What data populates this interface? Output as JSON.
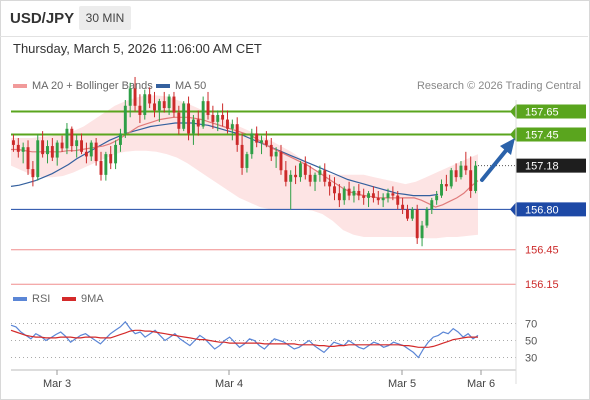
{
  "header": {
    "symbol": "USD/JPY",
    "timeframe": "30 MIN",
    "datetime": "Thursday, March 5, 2026 11:06:00 AM CET"
  },
  "legend": {
    "ma20_label": "MA 20 + Bollinger Bands",
    "ma50_label": "MA 50",
    "research": "Research © 2026 Trading Central",
    "rsi_label": "RSI",
    "rsi_ma_label": "9MA"
  },
  "colors": {
    "up_candle": "#2e9f46",
    "down_candle": "#cc2a2a",
    "ma20": "#e07b7b",
    "bollinger_fill": "#fde4e4",
    "ma50": "#34609e",
    "resistance": "#5aa51e",
    "pivot": "#1d49a6",
    "support": "#f08d8d",
    "current": "#1e1e1e",
    "arrow": "#2b62aa",
    "rsi": "#5b86d6",
    "rsi_ma": "#d42a2a"
  },
  "chart_data": [
    {
      "type": "candlestick",
      "title": "USD/JPY",
      "x_labels": [
        "Mar 3",
        "Mar 4",
        "Mar 5",
        "Mar 6"
      ],
      "ylim": [
        156.1,
        157.75
      ],
      "price_levels": [
        {
          "value": 157.65,
          "label": "157.65",
          "kind": "resistance"
        },
        {
          "value": 157.45,
          "label": "157.45",
          "kind": "resistance"
        },
        {
          "value": 157.18,
          "label": "157.18",
          "kind": "current"
        },
        {
          "value": 156.8,
          "label": "156.80",
          "kind": "pivot"
        },
        {
          "value": 156.45,
          "label": "156.45",
          "kind": "support"
        },
        {
          "value": 156.15,
          "label": "156.15",
          "kind": "support"
        }
      ],
      "candles": [
        [
          157.4,
          157.45,
          157.3,
          157.36
        ],
        [
          157.36,
          157.42,
          157.25,
          157.3
        ],
        [
          157.3,
          157.38,
          157.2,
          157.34
        ],
        [
          157.34,
          157.4,
          157.1,
          157.15
        ],
        [
          157.15,
          157.22,
          157.0,
          157.08
        ],
        [
          157.08,
          157.45,
          157.05,
          157.4
        ],
        [
          157.4,
          157.48,
          157.25,
          157.28
        ],
        [
          157.28,
          157.4,
          157.2,
          157.35
        ],
        [
          157.35,
          157.42,
          157.22,
          157.25
        ],
        [
          157.25,
          157.4,
          157.18,
          157.38
        ],
        [
          157.38,
          157.44,
          157.3,
          157.33
        ],
        [
          157.33,
          157.55,
          157.28,
          157.5
        ],
        [
          157.5,
          157.52,
          157.3,
          157.35
        ],
        [
          157.35,
          157.45,
          157.25,
          157.4
        ],
        [
          157.4,
          157.46,
          157.28,
          157.3
        ],
        [
          157.3,
          157.38,
          157.2,
          157.26
        ],
        [
          157.26,
          157.4,
          157.22,
          157.38
        ],
        [
          157.38,
          157.42,
          157.18,
          157.22
        ],
        [
          157.22,
          157.3,
          157.05,
          157.1
        ],
        [
          157.1,
          157.3,
          157.05,
          157.28
        ],
        [
          157.28,
          157.35,
          157.15,
          157.2
        ],
        [
          157.2,
          157.4,
          157.15,
          157.36
        ],
        [
          157.36,
          157.5,
          157.3,
          157.46
        ],
        [
          157.46,
          157.75,
          157.42,
          157.7
        ],
        [
          157.7,
          157.9,
          157.6,
          157.85
        ],
        [
          157.85,
          157.95,
          157.65,
          157.7
        ],
        [
          157.7,
          157.8,
          157.55,
          157.62
        ],
        [
          157.62,
          157.84,
          157.58,
          157.8
        ],
        [
          157.8,
          157.86,
          157.68,
          157.72
        ],
        [
          157.72,
          157.82,
          157.6,
          157.66
        ],
        [
          157.66,
          157.76,
          157.56,
          157.74
        ],
        [
          157.74,
          157.82,
          157.64,
          157.68
        ],
        [
          157.68,
          157.8,
          157.62,
          157.78
        ],
        [
          157.78,
          157.82,
          157.6,
          157.64
        ],
        [
          157.64,
          157.7,
          157.45,
          157.5
        ],
        [
          157.5,
          157.74,
          157.48,
          157.72
        ],
        [
          157.72,
          157.78,
          157.4,
          157.46
        ],
        [
          157.46,
          157.62,
          157.36,
          157.58
        ],
        [
          157.58,
          157.66,
          157.44,
          157.52
        ],
        [
          157.52,
          157.78,
          157.5,
          157.74
        ],
        [
          157.74,
          157.82,
          157.58,
          157.62
        ],
        [
          157.62,
          157.7,
          157.5,
          157.56
        ],
        [
          157.56,
          157.66,
          157.48,
          157.62
        ],
        [
          157.62,
          157.72,
          157.52,
          157.58
        ],
        [
          157.58,
          157.66,
          157.46,
          157.5
        ],
        [
          157.5,
          157.58,
          157.4,
          157.54
        ],
        [
          157.54,
          157.6,
          157.3,
          157.36
        ],
        [
          157.36,
          157.46,
          157.1,
          157.16
        ],
        [
          157.16,
          157.3,
          157.12,
          157.28
        ],
        [
          157.28,
          157.5,
          157.24,
          157.46
        ],
        [
          157.46,
          157.52,
          157.34,
          157.38
        ],
        [
          157.38,
          157.44,
          157.28,
          157.4
        ],
        [
          157.4,
          157.48,
          157.34,
          157.36
        ],
        [
          157.36,
          157.42,
          157.22,
          157.26
        ],
        [
          157.26,
          157.34,
          157.16,
          157.3
        ],
        [
          157.3,
          157.36,
          157.1,
          157.14
        ],
        [
          157.14,
          157.22,
          157.0,
          157.04
        ],
        [
          157.04,
          157.14,
          156.8,
          157.1
        ],
        [
          157.1,
          157.18,
          157.02,
          157.08
        ],
        [
          157.08,
          157.22,
          157.04,
          157.2
        ],
        [
          157.2,
          157.26,
          157.06,
          157.1
        ],
        [
          157.1,
          157.18,
          157.0,
          157.04
        ],
        [
          157.04,
          157.12,
          156.96,
          157.1
        ],
        [
          157.1,
          157.18,
          157.04,
          157.14
        ],
        [
          157.14,
          157.2,
          157.0,
          157.04
        ],
        [
          157.04,
          157.1,
          156.92,
          157.0
        ],
        [
          157.0,
          157.08,
          156.88,
          156.94
        ],
        [
          156.94,
          157.02,
          156.82,
          156.88
        ],
        [
          156.88,
          157.0,
          156.84,
          156.98
        ],
        [
          156.98,
          157.04,
          156.88,
          156.92
        ],
        [
          156.92,
          157.0,
          156.86,
          156.96
        ],
        [
          156.96,
          157.02,
          156.88,
          156.92
        ],
        [
          156.92,
          156.98,
          156.84,
          156.9
        ],
        [
          156.9,
          156.96,
          156.82,
          156.94
        ],
        [
          156.94,
          157.0,
          156.86,
          156.9
        ],
        [
          156.9,
          156.96,
          156.84,
          156.88
        ],
        [
          156.88,
          156.94,
          156.82,
          156.9
        ],
        [
          156.9,
          156.98,
          156.86,
          156.94
        ],
        [
          156.94,
          157.0,
          156.88,
          156.92
        ],
        [
          156.92,
          156.96,
          156.8,
          156.84
        ],
        [
          156.84,
          156.9,
          156.76,
          156.8
        ],
        [
          156.8,
          156.84,
          156.7,
          156.72
        ],
        [
          156.72,
          156.82,
          156.7,
          156.8
        ],
        [
          156.8,
          156.84,
          156.5,
          156.55
        ],
        [
          156.55,
          156.7,
          156.48,
          156.66
        ],
        [
          156.66,
          156.82,
          156.64,
          156.8
        ],
        [
          156.8,
          156.9,
          156.76,
          156.88
        ],
        [
          156.88,
          156.96,
          156.84,
          156.92
        ],
        [
          156.92,
          157.06,
          156.9,
          157.02
        ],
        [
          157.02,
          157.1,
          156.96,
          157.0
        ],
        [
          157.0,
          157.16,
          156.98,
          157.14
        ],
        [
          157.14,
          157.2,
          157.04,
          157.08
        ],
        [
          157.08,
          157.22,
          157.06,
          157.18
        ],
        [
          157.18,
          157.3,
          157.1,
          157.14
        ],
        [
          157.14,
          157.26,
          156.9,
          156.96
        ],
        [
          156.96,
          157.22,
          156.94,
          157.18
        ]
      ],
      "ma20": [
        157.32,
        157.32,
        157.31,
        157.3,
        157.3,
        157.3,
        157.3,
        157.3,
        157.31,
        157.31,
        157.32,
        157.33,
        157.34,
        157.35,
        157.37,
        157.4,
        157.44,
        157.48,
        157.52,
        157.54,
        157.56,
        157.58,
        157.59,
        157.6,
        157.6,
        157.6,
        157.59,
        157.58,
        157.56,
        157.54,
        157.52,
        157.5,
        157.48,
        157.46,
        157.44,
        157.4,
        157.36,
        157.33,
        157.3,
        157.27,
        157.24,
        157.21,
        157.18,
        157.14,
        157.1,
        157.06,
        157.02,
        156.98,
        156.95,
        156.93,
        156.92,
        156.91,
        156.9,
        156.9,
        156.9,
        156.9,
        156.9,
        156.9,
        156.88,
        156.85,
        156.82,
        156.84,
        156.87,
        156.9,
        156.94,
        157.0,
        157.05
      ],
      "ma50": [
        157.0,
        157.01,
        157.03,
        157.05,
        157.08,
        157.11,
        157.15,
        157.19,
        157.24,
        157.28,
        157.32,
        157.36,
        157.4,
        157.43,
        157.46,
        157.48,
        157.5,
        157.52,
        157.53,
        157.54,
        157.55,
        157.55,
        157.55,
        157.54,
        157.53,
        157.51,
        157.49,
        157.47,
        157.45,
        157.42,
        157.39,
        157.36,
        157.33,
        157.3,
        157.27,
        157.24,
        157.21,
        157.18,
        157.15,
        157.12,
        157.09,
        157.06,
        157.04,
        157.02,
        157.0,
        156.98,
        156.96,
        156.94,
        156.93,
        156.92,
        156.92,
        156.92,
        156.93
      ],
      "bollinger_upper": [
        157.42,
        157.42,
        157.42,
        157.43,
        157.44,
        157.46,
        157.48,
        157.52,
        157.58,
        157.64,
        157.7,
        157.74,
        157.77,
        157.79,
        157.79,
        157.78,
        157.75,
        157.72,
        157.68,
        157.64,
        157.6,
        157.56,
        157.52,
        157.48,
        157.44,
        157.4,
        157.35,
        157.3,
        157.24,
        157.16,
        157.12,
        157.1,
        157.1,
        157.1,
        157.1,
        157.08,
        157.06,
        157.04,
        157.02,
        157.04,
        157.08,
        157.12,
        157.16,
        157.2,
        157.24,
        157.28
      ],
      "bollinger_lower": [
        157.18,
        157.14,
        157.1,
        157.08,
        157.08,
        157.09,
        157.12,
        157.16,
        157.2,
        157.24,
        157.28,
        157.3,
        157.31,
        157.31,
        157.3,
        157.28,
        157.25,
        157.2,
        157.14,
        157.08,
        157.02,
        156.96,
        156.9,
        156.86,
        156.82,
        156.8,
        156.8,
        156.8,
        156.8,
        156.79,
        156.76,
        156.7,
        156.62,
        156.58,
        156.56,
        156.56,
        156.56,
        156.56,
        156.56,
        156.56,
        156.55,
        156.55,
        156.56,
        156.56,
        156.57,
        156.58
      ]
    },
    {
      "type": "line",
      "title": "RSI",
      "ylim": [
        20,
        80
      ],
      "y_ticks": [
        70,
        50,
        30
      ],
      "series": [
        {
          "name": "RSI",
          "values": [
            68,
            66,
            60,
            56,
            52,
            58,
            55,
            50,
            53,
            57,
            60,
            55,
            48,
            52,
            56,
            58,
            54,
            50,
            46,
            52,
            58,
            62,
            66,
            72,
            64,
            58,
            60,
            54,
            58,
            62,
            56,
            50,
            54,
            58,
            52,
            48,
            44,
            50,
            56,
            52,
            46,
            40,
            44,
            50,
            54,
            48,
            42,
            46,
            52,
            50,
            44,
            40,
            46,
            52,
            50,
            48,
            44,
            40,
            42,
            46,
            50,
            44,
            40,
            36,
            42,
            48,
            46,
            44,
            50,
            46,
            42,
            40,
            44,
            48,
            46,
            42,
            44,
            48,
            46,
            44,
            40,
            36,
            30,
            40,
            48,
            54,
            56,
            60,
            58,
            64,
            60,
            54,
            58,
            52,
            56
          ]
        },
        {
          "name": "9MA",
          "values": [
            62,
            60,
            58,
            56,
            55,
            54,
            54,
            53,
            53,
            53,
            54,
            54,
            54,
            53,
            53,
            54,
            54,
            54,
            53,
            53,
            53,
            55,
            57,
            59,
            61,
            62,
            62,
            61,
            61,
            60,
            59,
            58,
            57,
            56,
            55,
            54,
            53,
            52,
            51,
            51,
            50,
            49,
            48,
            48,
            47,
            47,
            47,
            47,
            47,
            47,
            47,
            46,
            46,
            46,
            46,
            46,
            46,
            46,
            45,
            45,
            45,
            45,
            44,
            44,
            43,
            43,
            44,
            44,
            45,
            45,
            45,
            45,
            45,
            45,
            45,
            45,
            45,
            45,
            45,
            44,
            44,
            43,
            42,
            42,
            42,
            43,
            45,
            47,
            49,
            51,
            52,
            53,
            54,
            54,
            54
          ]
        }
      ]
    }
  ]
}
